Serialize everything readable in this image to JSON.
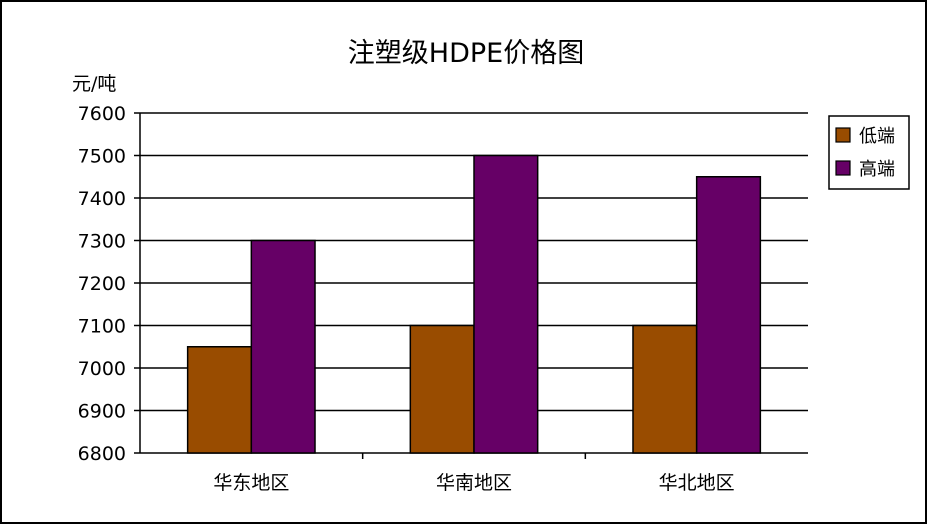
{
  "chart_data": {
    "type": "bar",
    "title": "注塑级HDPE价格图",
    "ylabel": "元/吨",
    "xlabel": "",
    "categories": [
      "华东地区",
      "华南地区",
      "华北地区"
    ],
    "series": [
      {
        "name": "低端",
        "color": "#994C00",
        "values": [
          7050,
          7100,
          7100
        ]
      },
      {
        "name": "高端",
        "color": "#660066",
        "values": [
          7300,
          7500,
          7450
        ]
      }
    ],
    "ylim": [
      6800,
      7600
    ],
    "yticks": [
      6800,
      6900,
      7000,
      7100,
      7200,
      7300,
      7400,
      7500,
      7600
    ],
    "grid": true,
    "legend": "right"
  }
}
